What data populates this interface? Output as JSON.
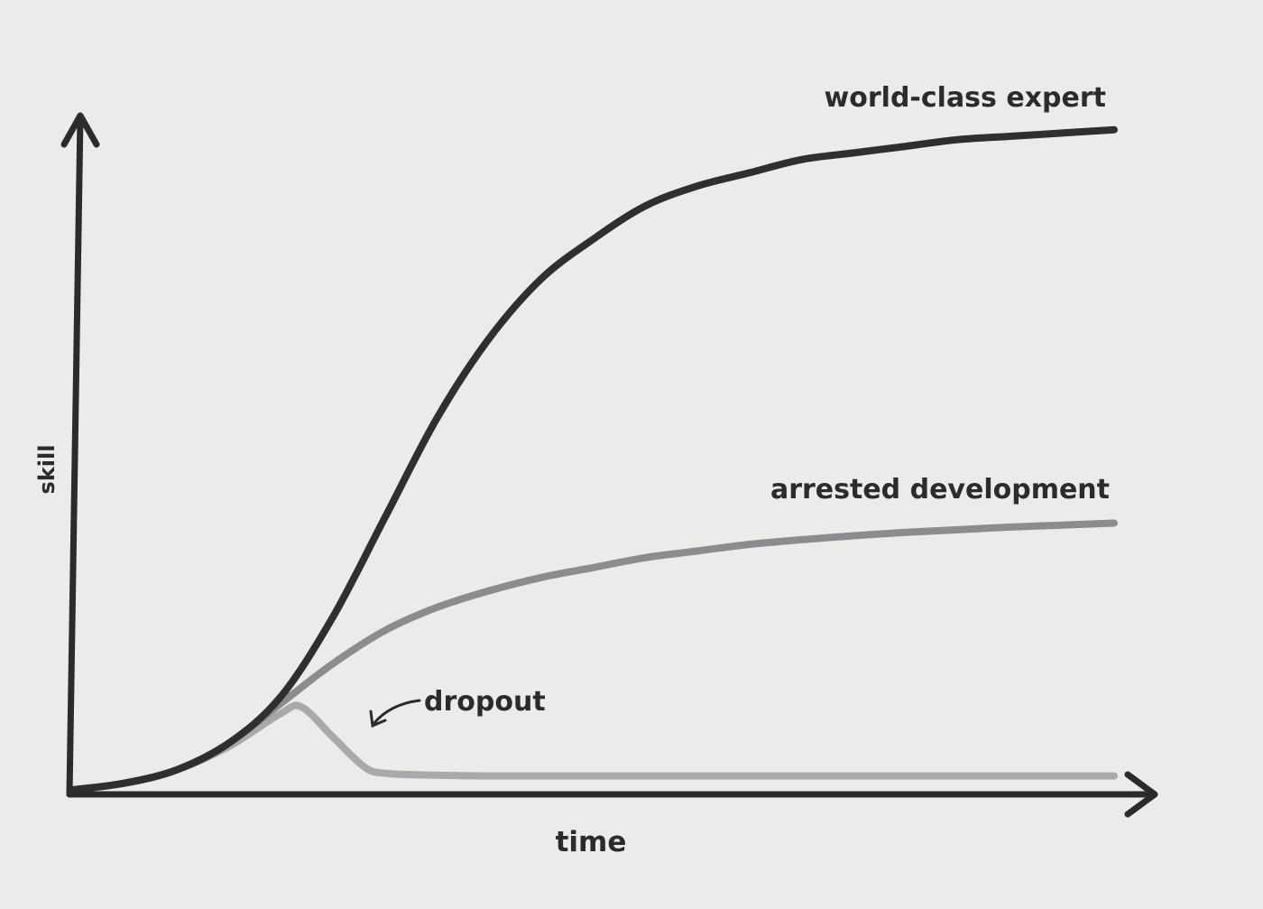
{
  "chart_data": {
    "type": "line",
    "title": "",
    "xlabel": "time",
    "ylabel": "skill",
    "xlim": [
      0,
      100
    ],
    "ylim": [
      0,
      100
    ],
    "grid": false,
    "legend": "none",
    "series": [
      {
        "name": "world-class expert",
        "color": "#2f2e30",
        "x": [
          0,
          5,
          10,
          15,
          20,
          25,
          30,
          35,
          40,
          45,
          50,
          55,
          60,
          65,
          70,
          75,
          80,
          85,
          90,
          95,
          100
        ],
        "y": [
          0,
          1,
          3,
          7,
          14,
          26,
          41,
          56,
          68,
          77,
          83,
          88,
          91,
          93,
          95,
          96,
          97,
          98,
          98.5,
          99,
          99.5
        ]
      },
      {
        "name": "arrested development",
        "color": "#8c8c8e",
        "x": [
          0,
          5,
          10,
          15,
          20,
          25,
          30,
          35,
          40,
          45,
          50,
          55,
          60,
          65,
          70,
          75,
          80,
          85,
          90,
          95,
          100
        ],
        "y": [
          0,
          1,
          3,
          7,
          13,
          19,
          24,
          27.5,
          30,
          32,
          33.5,
          35,
          36,
          37,
          37.7,
          38.3,
          38.8,
          39.2,
          39.6,
          39.9,
          40.2
        ]
      },
      {
        "name": "dropout",
        "color": "#a9a9ab",
        "x": [
          0,
          5,
          10,
          15,
          20,
          22,
          25,
          28,
          30,
          35,
          40,
          50,
          60,
          70,
          80,
          90,
          100
        ],
        "y": [
          0,
          1,
          3,
          6.5,
          11.5,
          12.5,
          8,
          3.5,
          2.5,
          2.2,
          2.1,
          2.1,
          2.1,
          2.1,
          2.1,
          2.1,
          2.1
        ]
      }
    ],
    "annotations": [
      {
        "text": "world-class expert",
        "series": "world-class expert"
      },
      {
        "text": "arrested development",
        "series": "arrested development"
      },
      {
        "text": "dropout",
        "series": "dropout"
      }
    ]
  },
  "colors": {
    "background": "#ecebe9",
    "axis": "#2b2b2c"
  }
}
